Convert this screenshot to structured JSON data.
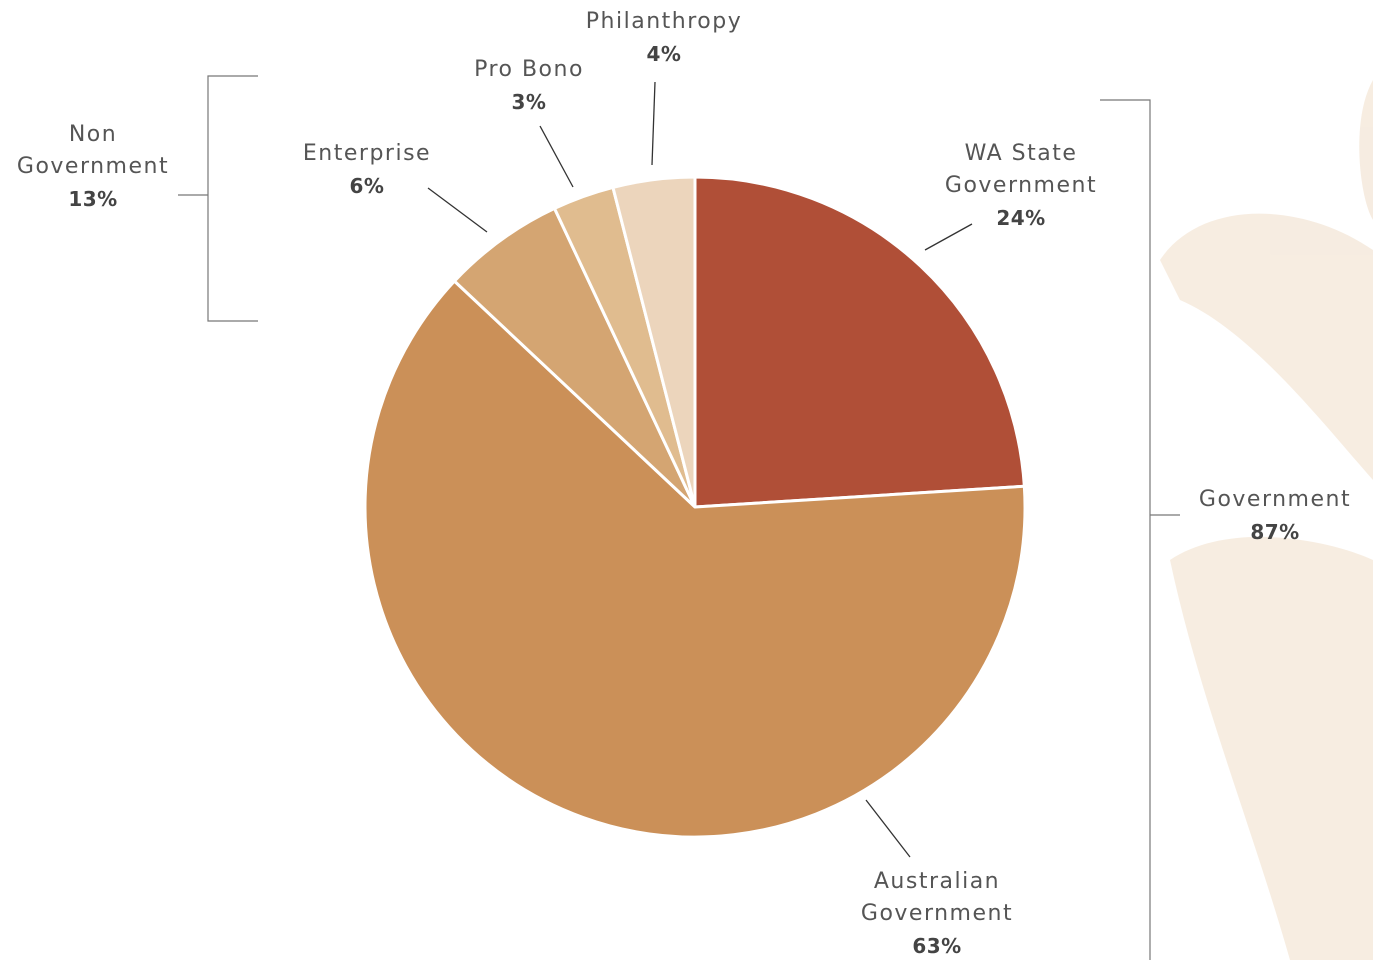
{
  "chart_data": {
    "type": "pie",
    "categories": [
      "WA State Government",
      "Australian Government",
      "Enterprise",
      "Pro Bono",
      "Philanthropy"
    ],
    "values": [
      24,
      63,
      6,
      3,
      4
    ],
    "value_labels": [
      "24%",
      "63%",
      "6%",
      "3%",
      "4%"
    ],
    "colors": [
      "#b04f37",
      "#cb9058",
      "#d4a572",
      "#e0bc8f",
      "#ecd5bc"
    ],
    "groups": [
      {
        "name": "Government",
        "value": 87,
        "value_label": "87%"
      },
      {
        "name": "Non Government",
        "value": 13,
        "value_label": "13%"
      }
    ]
  }
}
